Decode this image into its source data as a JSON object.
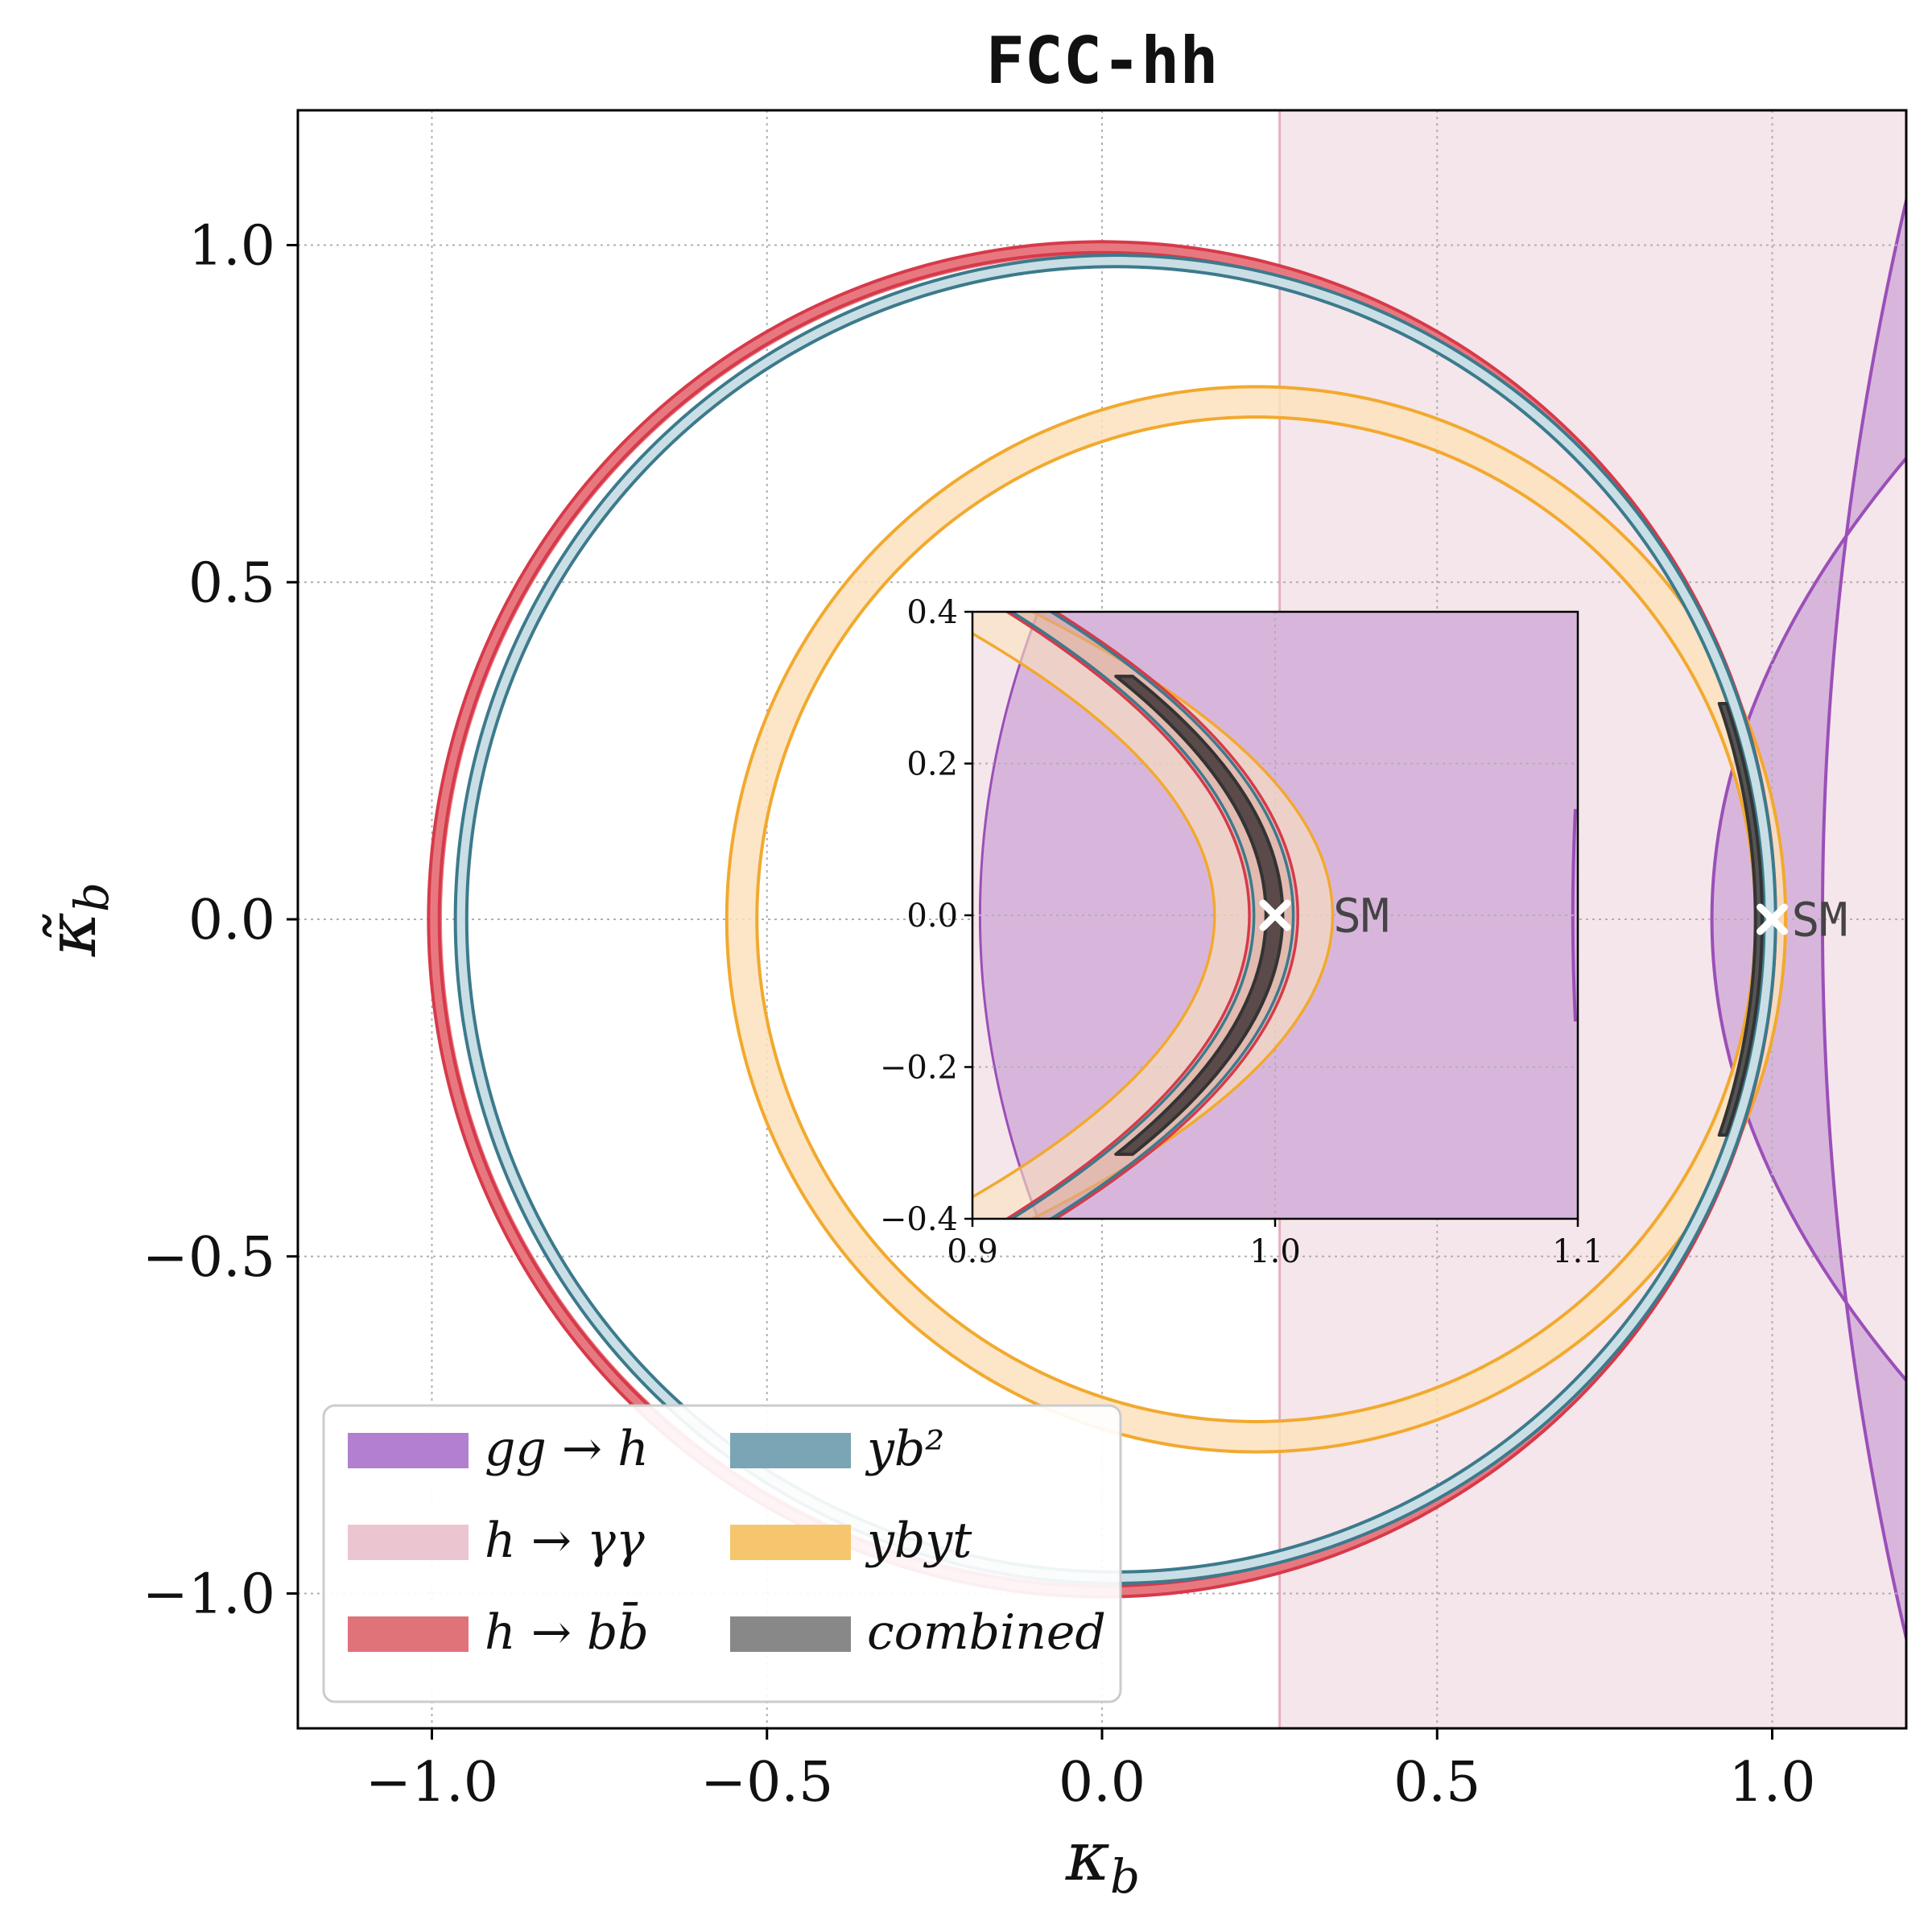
{
  "chart_data": {
    "type": "area",
    "title": "FCC-hh",
    "xlabel": "κ_b",
    "ylabel": "κ̃_b",
    "xlim": [
      -1.2,
      1.2
    ],
    "ylim": [
      -1.2,
      1.2
    ],
    "xticks": [
      -1.0,
      -0.5,
      0.0,
      0.5,
      1.0
    ],
    "yticks": [
      -1.0,
      -0.5,
      0.0,
      0.5,
      1.0
    ],
    "xtick_labels": [
      "−1.0",
      "−0.5",
      "0.0",
      "0.5",
      "1.0"
    ],
    "ytick_labels": [
      "1.0",
      "0.5",
      "0.0",
      "−0.5",
      "−1.0"
    ],
    "ytick_values": [
      1.0,
      0.5,
      0.0,
      -0.5,
      -1.0
    ],
    "grid": true,
    "legend_position": "lower-left",
    "sm_point": {
      "x": 1.0,
      "y": 0.0,
      "label": "SM"
    },
    "series": [
      {
        "name": "gg → h",
        "legend_label": "gg → h",
        "color": "#9b4fb8",
        "fill": "#d8b6dc",
        "shape": "band between two parabola-like curves",
        "inner_vertex_x": 0.91,
        "outer_edge_x": 1.2
      },
      {
        "name": "h → γγ",
        "legend_label": "h → γγ",
        "color": "#e3b1bf",
        "fill": "#f5e6eb",
        "shape": "vertical band",
        "x_min": 0.265,
        "x_max": 1.2
      },
      {
        "name": "h → b b̄",
        "legend_label": "h → bb̄",
        "color": "#d63a4a",
        "fill": "#e87880",
        "shape": "thin annulus",
        "center": [
          0.0,
          0.0
        ],
        "r_inner": 0.985,
        "r_outer": 1.005
      },
      {
        "name": "y_b^2",
        "legend_label": "yb²",
        "color": "#3c7a8c",
        "fill": "#c9dfe5",
        "shape": "thin annulus",
        "center": [
          0.02,
          0.0
        ],
        "r_inner": 0.968,
        "r_outer": 0.985
      },
      {
        "name": "y_b y_t",
        "legend_label": "ybyt",
        "color": "#f2a92e",
        "fill": "#fbe2bd",
        "shape": "annulus",
        "center": [
          0.23,
          0.0
        ],
        "r_inner": 0.745,
        "r_outer": 0.79
      },
      {
        "name": "combined",
        "legend_label": "combined",
        "color": "#333333",
        "fill": "#555555",
        "shape": "arc segment",
        "center": [
          0.0,
          0.0
        ],
        "r_inner": 0.975,
        "r_outer": 0.985,
        "y_range": [
          -0.32,
          0.32
        ]
      }
    ],
    "inset": {
      "xlim": [
        0.9,
        1.1
      ],
      "ylim": [
        -0.4,
        0.4
      ],
      "xticks": [
        0.9,
        1.0,
        1.1
      ],
      "xtick_labels": [
        "0.9",
        "1.0",
        "1.1"
      ],
      "yticks": [
        0.4,
        0.2,
        0.0,
        -0.2,
        -0.4
      ],
      "ytick_labels": [
        "0.4",
        "0.2",
        "0.0",
        "−0.2",
        "−0.4"
      ]
    }
  },
  "legend": {
    "items": [
      {
        "label": "gg → h",
        "color": "#b37fcf"
      },
      {
        "label": "h → γγ",
        "color": "#ebc6d1"
      },
      {
        "label": "h → bb̄",
        "color": "#e07279"
      },
      {
        "label": "yb²",
        "color": "#7aa5b4"
      },
      {
        "label": "ybyt",
        "color": "#f6c66e"
      },
      {
        "label": "combined",
        "color": "#888888"
      }
    ]
  }
}
